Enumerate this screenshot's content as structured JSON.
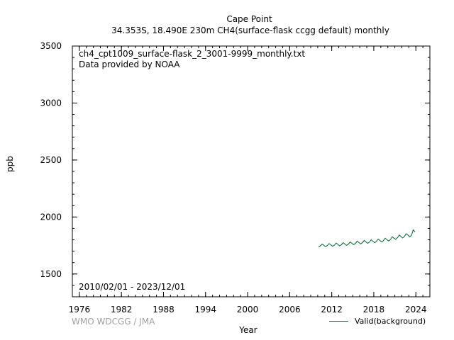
{
  "header": {
    "station": "Cape Point",
    "subtitle": "34.353S, 18.490E 230m    CH4(surface-flask ccgg default) monthly"
  },
  "annotations": {
    "filename": "ch4_cpt1009_surface-flask_2_3001-9999_monthly.txt",
    "provider": "Data provided by NOAA",
    "period": "2010/02/01 - 2023/12/01"
  },
  "footer": {
    "credit": "WMO WDCGG / JMA"
  },
  "chart_data": {
    "type": "line",
    "title": "Cape Point",
    "xlabel": "Year",
    "ylabel": "ppb",
    "xlim": [
      1975,
      2026
    ],
    "ylim": [
      1300,
      3500
    ],
    "xticks": [
      1976,
      1982,
      1988,
      1994,
      2000,
      2006,
      2012,
      2018,
      2024
    ],
    "yticks": [
      1500,
      2000,
      2500,
      3000,
      3500
    ],
    "grid": false,
    "legend": "bottom-right",
    "series": [
      {
        "name": "Valid(background)",
        "color": "#006633",
        "x": [
          2010.125,
          2010.375,
          2010.625,
          2010.875,
          2011.125,
          2011.375,
          2011.625,
          2011.875,
          2012.125,
          2012.375,
          2012.625,
          2012.875,
          2013.125,
          2013.375,
          2013.625,
          2013.875,
          2014.125,
          2014.375,
          2014.625,
          2014.875,
          2015.125,
          2015.375,
          2015.625,
          2015.875,
          2016.125,
          2016.375,
          2016.625,
          2016.875,
          2017.125,
          2017.375,
          2017.625,
          2017.875,
          2018.125,
          2018.375,
          2018.625,
          2018.875,
          2019.125,
          2019.375,
          2019.625,
          2019.875,
          2020.125,
          2020.375,
          2020.625,
          2020.875,
          2021.125,
          2021.375,
          2021.625,
          2021.875,
          2022.125,
          2022.375,
          2022.625,
          2022.875,
          2023.125,
          2023.375,
          2023.625,
          2023.875
        ],
        "y": [
          1737,
          1746,
          1763,
          1752,
          1740,
          1750,
          1767,
          1756,
          1743,
          1753,
          1771,
          1760,
          1747,
          1757,
          1775,
          1763,
          1751,
          1762,
          1781,
          1769,
          1757,
          1768,
          1788,
          1776,
          1764,
          1775,
          1795,
          1782,
          1769,
          1780,
          1800,
          1787,
          1775,
          1786,
          1806,
          1794,
          1781,
          1793,
          1814,
          1801,
          1790,
          1803,
          1827,
          1814,
          1804,
          1818,
          1842,
          1829,
          1816,
          1830,
          1853,
          1841,
          1826,
          1840,
          1887,
          1869
        ]
      }
    ]
  }
}
